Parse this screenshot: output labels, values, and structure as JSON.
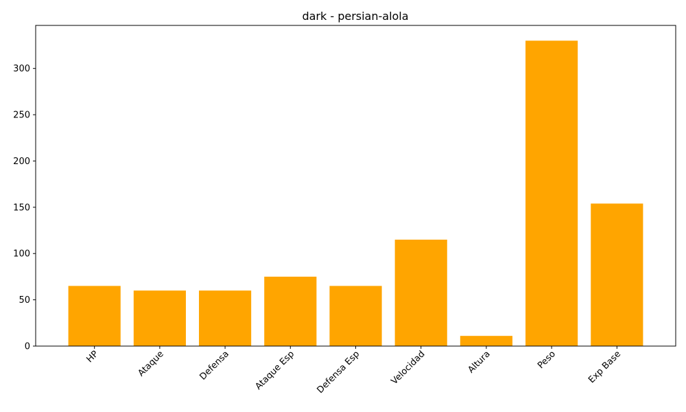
{
  "chart_data": {
    "type": "bar",
    "title": "dark - persian-alola",
    "xlabel": "",
    "ylabel": "",
    "categories": [
      "HP",
      "Ataque",
      "Defensa",
      "Ataque Esp",
      "Defensa Esp",
      "Velocidad",
      "Altura",
      "Peso",
      "Exp Base"
    ],
    "values": [
      65,
      60,
      60,
      75,
      65,
      115,
      11,
      330,
      154
    ],
    "ylim": [
      0,
      346.5
    ],
    "yticks": [
      0,
      50,
      100,
      150,
      200,
      250,
      300
    ],
    "bar_color": "#ffa500",
    "grid": false,
    "x_tick_rotation": -45
  }
}
